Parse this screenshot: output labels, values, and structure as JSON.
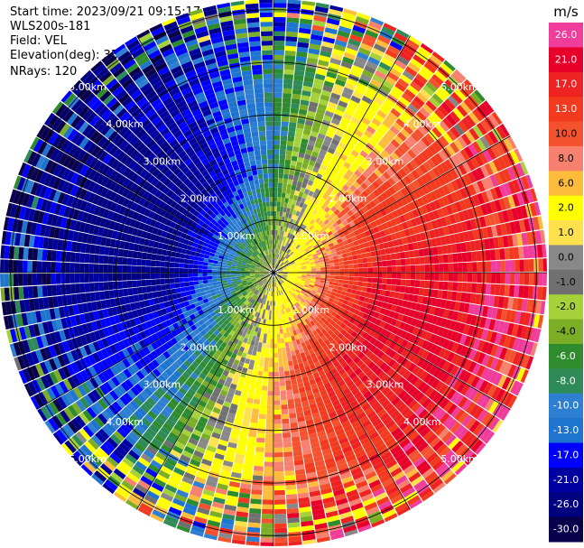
{
  "header": {
    "start_time": "Start time: 2023/09/21 09:15:17",
    "station": "WLS200s-181",
    "field": "Field: VEL",
    "elevation": "Elevation(deg): 35.30",
    "nrays": "NRays: 120"
  },
  "chart_data": {
    "type": "heatmap",
    "projection": "polar-ppi",
    "field": "VEL",
    "units": "m/s",
    "n_rays": 120,
    "range_rings_km": [
      "1.00km",
      "2.00km",
      "3.00km",
      "4.00km",
      "5.00km"
    ],
    "max_range_km": 5.0,
    "pattern": "approaching (negative) velocities toward the west / north-west, receding (positive) velocities toward the east / south-east; noisy values beyond about 3.5 km",
    "colorbar": {
      "unit": "m/s",
      "labels": [
        "26.0",
        "21.0",
        "17.0",
        "13.0",
        "10.0",
        "8.0",
        "6.0",
        "2.0",
        "1.0",
        "0.0",
        "-1.0",
        "-2.0",
        "-4.0",
        "-6.0",
        "-8.0",
        "-10.0",
        "-13.0",
        "-17.0",
        "-21.0",
        "-26.0",
        "-30.0"
      ],
      "colors": [
        "#f03c9b",
        "#e6002a",
        "#ee2222",
        "#f33a1e",
        "#f4522f",
        "#f7806e",
        "#fdbc3c",
        "#ffff00",
        "#ffe14d",
        "#888888",
        "#707070",
        "#a5d13a",
        "#7cad27",
        "#2e8b2e",
        "#2e8b57",
        "#2e7ed2",
        "#1e74cf",
        "#0000ff",
        "#0000a0",
        "#000080",
        "#08004a"
      ]
    }
  }
}
